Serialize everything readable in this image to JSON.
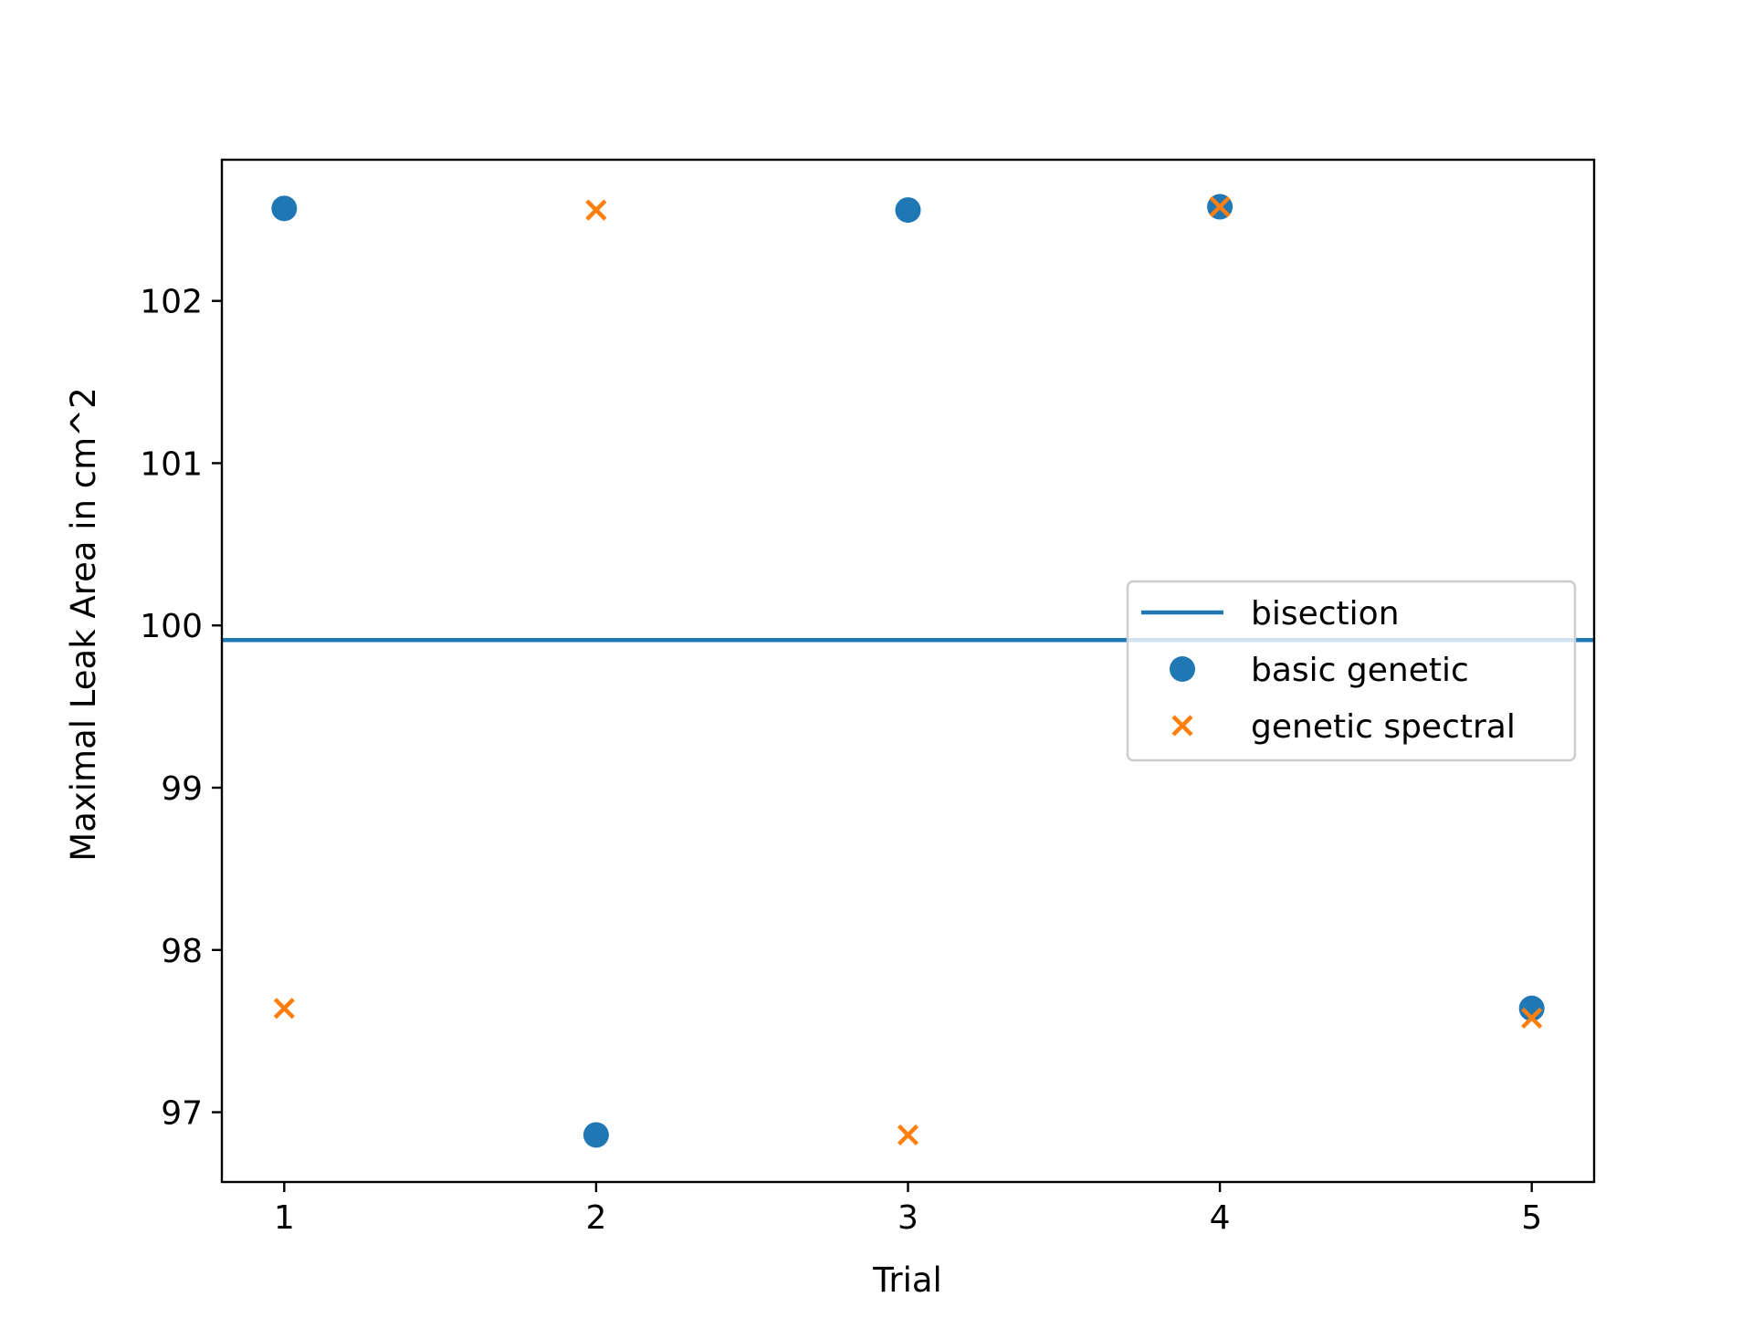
{
  "chart_data": {
    "type": "scatter",
    "title": "",
    "xlabel": "Trial",
    "ylabel": "Maximal Leak Area in cm^2",
    "xlim": [
      0.8,
      5.2
    ],
    "ylim": [
      96.57,
      102.87
    ],
    "x_ticks": [
      1,
      2,
      3,
      4,
      5
    ],
    "y_ticks": [
      97,
      98,
      99,
      100,
      101,
      102
    ],
    "grid": false,
    "legend_position": "center-right",
    "series": [
      {
        "name": "bisection",
        "kind": "hline",
        "color": "#1f77b4",
        "y": 99.91
      },
      {
        "name": "basic genetic",
        "kind": "scatter",
        "marker": "circle",
        "color": "#1f77b4",
        "x": [
          1,
          2,
          3,
          4,
          5
        ],
        "y": [
          102.57,
          96.86,
          102.56,
          102.58,
          97.64
        ]
      },
      {
        "name": "genetic spectral",
        "kind": "scatter",
        "marker": "x",
        "color": "#ff7f0e",
        "x": [
          1,
          2,
          3,
          4,
          5
        ],
        "y": [
          97.64,
          102.56,
          96.86,
          102.58,
          97.58
        ]
      }
    ]
  }
}
